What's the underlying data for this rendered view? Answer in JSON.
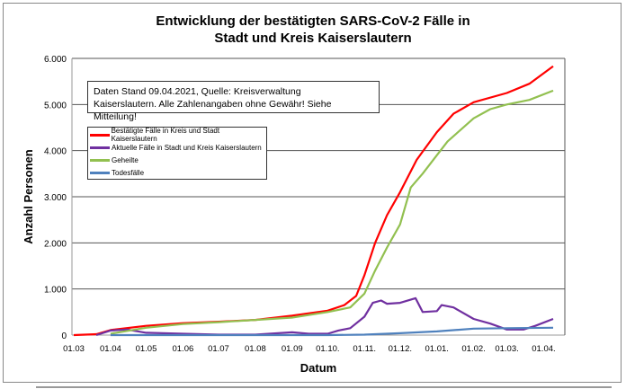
{
  "chart_data": {
    "type": "line",
    "title": "Entwicklung der bestätigten SARS-CoV-2 Fälle in Stadt und Kreis Kaiserslautern",
    "title_lines": [
      "Entwicklung der bestätigten SARS-CoV-2 Fälle in",
      "Stadt und Kreis Kaiserslautern"
    ],
    "xlabel": "Datum",
    "ylabel": "Anzahl Personen",
    "ylim": [
      0,
      6000
    ],
    "grid": "horizontal",
    "yticks": [
      {
        "v": 0,
        "label": "0"
      },
      {
        "v": 1000,
        "label": "1.000"
      },
      {
        "v": 2000,
        "label": "2.000"
      },
      {
        "v": 3000,
        "label": "3.000"
      },
      {
        "v": 4000,
        "label": "4.000"
      },
      {
        "v": 5000,
        "label": "5.000"
      },
      {
        "v": 6000,
        "label": "6.000"
      }
    ],
    "xlim": [
      "2020-03-01",
      "2021-04-09"
    ],
    "xticks": [
      {
        "d": "2020-03-01",
        "label": "01.03"
      },
      {
        "d": "2020-04-01",
        "label": "01.04"
      },
      {
        "d": "2020-05-01",
        "label": "01.05"
      },
      {
        "d": "2020-06-01",
        "label": "01.06"
      },
      {
        "d": "2020-07-01",
        "label": "01.07"
      },
      {
        "d": "2020-08-01",
        "label": "01.08"
      },
      {
        "d": "2020-09-01",
        "label": "01.09"
      },
      {
        "d": "2020-10-01",
        "label": "01.10."
      },
      {
        "d": "2020-11-01",
        "label": "01.11."
      },
      {
        "d": "2020-12-01",
        "label": "01.12."
      },
      {
        "d": "2021-01-01",
        "label": "01.01."
      },
      {
        "d": "2021-02-01",
        "label": "01.02."
      },
      {
        "d": "2021-03-01",
        "label": "01.03."
      },
      {
        "d": "2021-04-01",
        "label": "01.04."
      }
    ],
    "legend_position": "top-left",
    "annotation": [
      "Daten Stand 09.04.2021, Quelle: Kreisverwaltung",
      "Kaiserslautern. Alle Zahlenangaben ohne Gewähr! Siehe Mitteilung!"
    ],
    "series": [
      {
        "name": "Bestätigte Fälle in Kreis und Stadt Kaiserslautern",
        "color": "#ff0000",
        "points": [
          [
            "2020-03-01",
            0
          ],
          [
            "2020-03-20",
            20
          ],
          [
            "2020-04-01",
            110
          ],
          [
            "2020-05-01",
            200
          ],
          [
            "2020-06-01",
            260
          ],
          [
            "2020-07-01",
            290
          ],
          [
            "2020-08-01",
            330
          ],
          [
            "2020-09-01",
            420
          ],
          [
            "2020-10-01",
            530
          ],
          [
            "2020-10-15",
            650
          ],
          [
            "2020-10-25",
            850
          ],
          [
            "2020-11-01",
            1300
          ],
          [
            "2020-11-10",
            2000
          ],
          [
            "2020-11-20",
            2600
          ],
          [
            "2020-12-01",
            3100
          ],
          [
            "2020-12-15",
            3800
          ],
          [
            "2021-01-01",
            4400
          ],
          [
            "2021-01-15",
            4800
          ],
          [
            "2021-02-01",
            5050
          ],
          [
            "2021-03-01",
            5250
          ],
          [
            "2021-03-20",
            5450
          ],
          [
            "2021-04-09",
            5830
          ]
        ]
      },
      {
        "name": "Aktuelle Fälle in Stadt und Kreis Kaiserslautern",
        "color": "#7030a0",
        "points": [
          [
            "2020-03-20",
            0
          ],
          [
            "2020-04-01",
            100
          ],
          [
            "2020-04-15",
            120
          ],
          [
            "2020-05-01",
            50
          ],
          [
            "2020-06-01",
            30
          ],
          [
            "2020-07-01",
            10
          ],
          [
            "2020-08-01",
            10
          ],
          [
            "2020-09-01",
            60
          ],
          [
            "2020-09-15",
            30
          ],
          [
            "2020-10-01",
            30
          ],
          [
            "2020-10-10",
            100
          ],
          [
            "2020-10-20",
            150
          ],
          [
            "2020-11-01",
            400
          ],
          [
            "2020-11-08",
            700
          ],
          [
            "2020-11-15",
            750
          ],
          [
            "2020-11-20",
            680
          ],
          [
            "2020-12-01",
            700
          ],
          [
            "2020-12-14",
            800
          ],
          [
            "2020-12-20",
            500
          ],
          [
            "2021-01-01",
            520
          ],
          [
            "2021-01-05",
            650
          ],
          [
            "2021-01-15",
            600
          ],
          [
            "2021-02-01",
            350
          ],
          [
            "2021-02-15",
            250
          ],
          [
            "2021-03-01",
            120
          ],
          [
            "2021-03-15",
            120
          ],
          [
            "2021-03-25",
            200
          ],
          [
            "2021-04-09",
            350
          ]
        ]
      },
      {
        "name": "Geheilte",
        "color": "#92c050",
        "points": [
          [
            "2020-04-01",
            30
          ],
          [
            "2020-05-01",
            160
          ],
          [
            "2020-06-01",
            240
          ],
          [
            "2020-07-01",
            280
          ],
          [
            "2020-08-01",
            330
          ],
          [
            "2020-09-01",
            380
          ],
          [
            "2020-10-01",
            500
          ],
          [
            "2020-10-20",
            600
          ],
          [
            "2020-11-01",
            900
          ],
          [
            "2020-11-10",
            1400
          ],
          [
            "2020-11-20",
            1900
          ],
          [
            "2020-12-01",
            2400
          ],
          [
            "2020-12-10",
            3200
          ],
          [
            "2020-12-20",
            3500
          ],
          [
            "2021-01-01",
            3900
          ],
          [
            "2021-01-10",
            4200
          ],
          [
            "2021-02-01",
            4700
          ],
          [
            "2021-02-15",
            4900
          ],
          [
            "2021-03-01",
            5000
          ],
          [
            "2021-03-20",
            5100
          ],
          [
            "2021-04-09",
            5300
          ]
        ]
      },
      {
        "name": "Todesfälle",
        "color": "#4f81bd",
        "points": [
          [
            "2020-04-01",
            0
          ],
          [
            "2020-10-01",
            0
          ],
          [
            "2020-11-01",
            10
          ],
          [
            "2020-12-01",
            40
          ],
          [
            "2021-01-01",
            80
          ],
          [
            "2021-02-01",
            140
          ],
          [
            "2021-03-01",
            150
          ],
          [
            "2021-04-09",
            160
          ]
        ]
      }
    ]
  }
}
